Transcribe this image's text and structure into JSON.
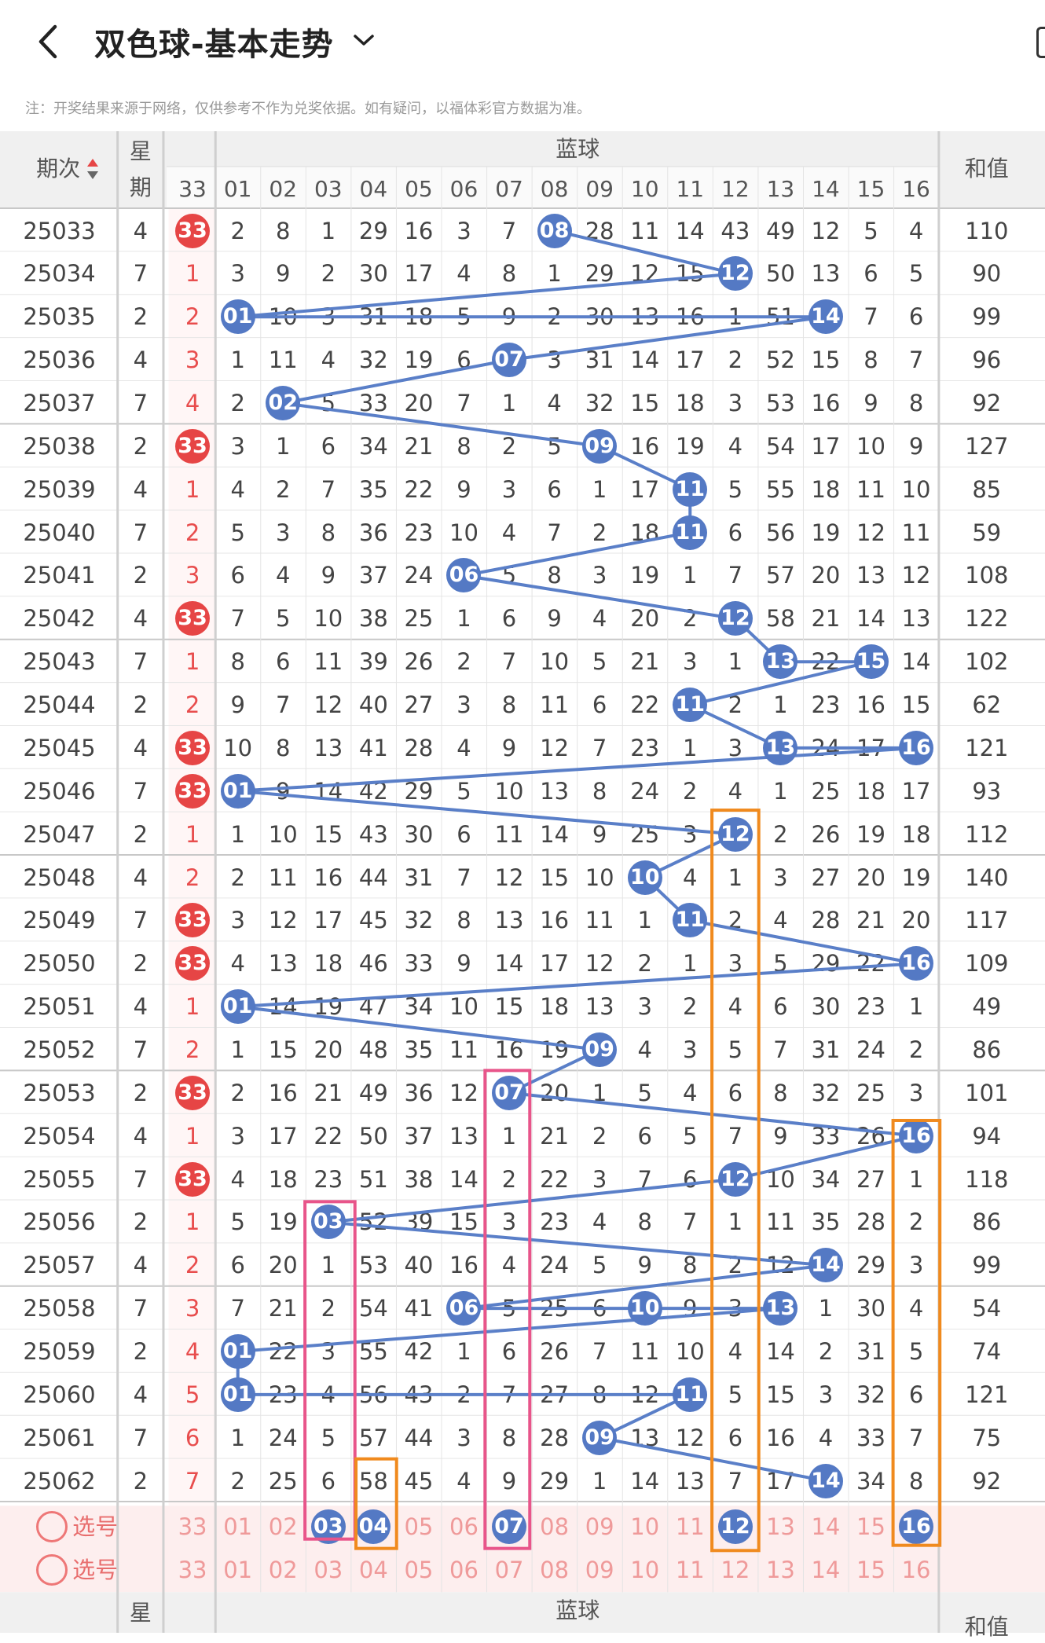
{
  "header": {
    "title": "双色球-基本走势"
  },
  "note": "注：开奖结果来源于网络，仅供参考不作为兑奖依据。如有疑问，以福体彩官方数据为准。",
  "table": {
    "col_issue": "期次",
    "col_week": "星期",
    "col_blue": "蓝球",
    "col_sum": "和值",
    "red_col": "33",
    "blue_headers": [
      "01",
      "02",
      "03",
      "04",
      "05",
      "06",
      "07",
      "08",
      "09",
      "10",
      "11",
      "12",
      "13",
      "14",
      "15",
      "16"
    ],
    "rows": [
      {
        "issue": "25033",
        "week": "4",
        "red": "33",
        "blue": [
          "2",
          "8",
          "1",
          "29",
          "16",
          "3",
          "7",
          "08",
          "28",
          "11",
          "14",
          "43",
          "49",
          "12",
          "5",
          "4"
        ],
        "sum": "110"
      },
      {
        "issue": "25034",
        "week": "7",
        "red": "1",
        "blue": [
          "3",
          "9",
          "2",
          "30",
          "17",
          "4",
          "8",
          "1",
          "29",
          "12",
          "15",
          "12",
          "50",
          "13",
          "6",
          "5"
        ],
        "sum": "90"
      },
      {
        "issue": "25035",
        "week": "2",
        "red": "2",
        "blue": [
          "01",
          "10",
          "3",
          "31",
          "18",
          "5",
          "9",
          "2",
          "30",
          "13",
          "16",
          "1",
          "51",
          "14",
          "7",
          "6"
        ],
        "sum": "99"
      },
      {
        "issue": "25036",
        "week": "4",
        "red": "3",
        "blue": [
          "1",
          "11",
          "4",
          "32",
          "19",
          "6",
          "07",
          "3",
          "31",
          "14",
          "17",
          "2",
          "52",
          "15",
          "8",
          "7"
        ],
        "sum": "96"
      },
      {
        "issue": "25037",
        "week": "7",
        "red": "4",
        "blue": [
          "2",
          "02",
          "5",
          "33",
          "20",
          "7",
          "1",
          "4",
          "32",
          "15",
          "18",
          "3",
          "53",
          "16",
          "9",
          "8"
        ],
        "sum": "92"
      },
      {
        "issue": "25038",
        "week": "2",
        "red": "33",
        "blue": [
          "3",
          "1",
          "6",
          "34",
          "21",
          "8",
          "2",
          "5",
          "09",
          "16",
          "19",
          "4",
          "54",
          "17",
          "10",
          "9"
        ],
        "sum": "127"
      },
      {
        "issue": "25039",
        "week": "4",
        "red": "1",
        "blue": [
          "4",
          "2",
          "7",
          "35",
          "22",
          "9",
          "3",
          "6",
          "1",
          "17",
          "11",
          "5",
          "55",
          "18",
          "11",
          "10"
        ],
        "sum": "85"
      },
      {
        "issue": "25040",
        "week": "7",
        "red": "2",
        "blue": [
          "5",
          "3",
          "8",
          "36",
          "23",
          "10",
          "4",
          "7",
          "2",
          "18",
          "11",
          "6",
          "56",
          "19",
          "12",
          "11"
        ],
        "sum": "59"
      },
      {
        "issue": "25041",
        "week": "2",
        "red": "3",
        "blue": [
          "6",
          "4",
          "9",
          "37",
          "24",
          "06",
          "5",
          "8",
          "3",
          "19",
          "1",
          "7",
          "57",
          "20",
          "13",
          "12"
        ],
        "sum": "108"
      },
      {
        "issue": "25042",
        "week": "4",
        "red": "33",
        "blue": [
          "7",
          "5",
          "10",
          "38",
          "25",
          "1",
          "6",
          "9",
          "4",
          "20",
          "2",
          "12",
          "58",
          "21",
          "14",
          "13"
        ],
        "sum": "122"
      },
      {
        "issue": "25043",
        "week": "7",
        "red": "1",
        "blue": [
          "8",
          "6",
          "11",
          "39",
          "26",
          "2",
          "7",
          "10",
          "5",
          "21",
          "3",
          "1",
          "13",
          "22",
          "15",
          "14"
        ],
        "sum": "102"
      },
      {
        "issue": "25044",
        "week": "2",
        "red": "2",
        "blue": [
          "9",
          "7",
          "12",
          "40",
          "27",
          "3",
          "8",
          "11",
          "6",
          "22",
          "11",
          "2",
          "1",
          "23",
          "16",
          "15"
        ],
        "sum": "62"
      },
      {
        "issue": "25045",
        "week": "4",
        "red": "33",
        "blue": [
          "10",
          "8",
          "13",
          "41",
          "28",
          "4",
          "9",
          "12",
          "7",
          "23",
          "1",
          "3",
          "13",
          "24",
          "17",
          "16"
        ],
        "sum": "121"
      },
      {
        "issue": "25046",
        "week": "7",
        "red": "33",
        "blue": [
          "01",
          "9",
          "14",
          "42",
          "29",
          "5",
          "10",
          "13",
          "8",
          "24",
          "2",
          "4",
          "1",
          "25",
          "18",
          "17"
        ],
        "sum": "93"
      },
      {
        "issue": "25047",
        "week": "2",
        "red": "1",
        "blue": [
          "1",
          "10",
          "15",
          "43",
          "30",
          "6",
          "11",
          "14",
          "9",
          "25",
          "3",
          "12",
          "2",
          "26",
          "19",
          "18"
        ],
        "sum": "112"
      },
      {
        "issue": "25048",
        "week": "4",
        "red": "2",
        "blue": [
          "2",
          "11",
          "16",
          "44",
          "31",
          "7",
          "12",
          "15",
          "10",
          "10",
          "4",
          "1",
          "3",
          "27",
          "20",
          "19"
        ],
        "sum": "140"
      },
      {
        "issue": "25049",
        "week": "7",
        "red": "33",
        "blue": [
          "3",
          "12",
          "17",
          "45",
          "32",
          "8",
          "13",
          "16",
          "11",
          "1",
          "11",
          "2",
          "4",
          "28",
          "21",
          "20"
        ],
        "sum": "117"
      },
      {
        "issue": "25050",
        "week": "2",
        "red": "33",
        "blue": [
          "4",
          "13",
          "18",
          "46",
          "33",
          "9",
          "14",
          "17",
          "12",
          "2",
          "1",
          "3",
          "5",
          "29",
          "22",
          "16"
        ],
        "sum": "109"
      },
      {
        "issue": "25051",
        "week": "4",
        "red": "1",
        "blue": [
          "01",
          "14",
          "19",
          "47",
          "34",
          "10",
          "15",
          "18",
          "13",
          "3",
          "2",
          "4",
          "6",
          "30",
          "23",
          "1"
        ],
        "sum": "49"
      },
      {
        "issue": "25052",
        "week": "7",
        "red": "2",
        "blue": [
          "1",
          "15",
          "20",
          "48",
          "35",
          "11",
          "16",
          "19",
          "09",
          "4",
          "3",
          "5",
          "7",
          "31",
          "24",
          "2"
        ],
        "sum": "86"
      },
      {
        "issue": "25053",
        "week": "2",
        "red": "33",
        "blue": [
          "2",
          "16",
          "21",
          "49",
          "36",
          "12",
          "07",
          "20",
          "1",
          "5",
          "4",
          "6",
          "8",
          "32",
          "25",
          "3"
        ],
        "sum": "101"
      },
      {
        "issue": "25054",
        "week": "4",
        "red": "1",
        "blue": [
          "3",
          "17",
          "22",
          "50",
          "37",
          "13",
          "1",
          "21",
          "2",
          "6",
          "5",
          "7",
          "9",
          "33",
          "26",
          "16"
        ],
        "sum": "94"
      },
      {
        "issue": "25055",
        "week": "7",
        "red": "33",
        "blue": [
          "4",
          "18",
          "23",
          "51",
          "38",
          "14",
          "2",
          "22",
          "3",
          "7",
          "6",
          "12",
          "10",
          "34",
          "27",
          "1"
        ],
        "sum": "118"
      },
      {
        "issue": "25056",
        "week": "2",
        "red": "1",
        "blue": [
          "5",
          "19",
          "03",
          "52",
          "39",
          "15",
          "3",
          "23",
          "4",
          "8",
          "7",
          "1",
          "11",
          "35",
          "28",
          "2"
        ],
        "sum": "86"
      },
      {
        "issue": "25057",
        "week": "4",
        "red": "2",
        "blue": [
          "6",
          "20",
          "1",
          "53",
          "40",
          "16",
          "4",
          "24",
          "5",
          "9",
          "8",
          "2",
          "12",
          "14",
          "29",
          "3"
        ],
        "sum": "99"
      },
      {
        "issue": "25058",
        "week": "7",
        "red": "3",
        "blue": [
          "7",
          "21",
          "2",
          "54",
          "41",
          "06",
          "5",
          "25",
          "6",
          "10",
          "9",
          "3",
          "13",
          "1",
          "30",
          "4"
        ],
        "sum": "54"
      },
      {
        "issue": "25059",
        "week": "2",
        "red": "4",
        "blue": [
          "01",
          "22",
          "3",
          "55",
          "42",
          "1",
          "6",
          "26",
          "7",
          "11",
          "10",
          "4",
          "14",
          "2",
          "31",
          "5"
        ],
        "sum": "74"
      },
      {
        "issue": "25060",
        "week": "4",
        "red": "5",
        "blue": [
          "01",
          "23",
          "4",
          "56",
          "43",
          "2",
          "7",
          "27",
          "8",
          "12",
          "11",
          "5",
          "15",
          "3",
          "32",
          "6"
        ],
        "sum": "121"
      },
      {
        "issue": "25061",
        "week": "7",
        "red": "6",
        "blue": [
          "1",
          "24",
          "5",
          "57",
          "44",
          "3",
          "8",
          "28",
          "09",
          "13",
          "12",
          "6",
          "16",
          "4",
          "33",
          "7"
        ],
        "sum": "75"
      },
      {
        "issue": "25062",
        "week": "2",
        "red": "7",
        "blue": [
          "2",
          "25",
          "6",
          "58",
          "45",
          "4",
          "9",
          "29",
          "1",
          "14",
          "13",
          "7",
          "17",
          "14",
          "34",
          "8"
        ],
        "sum": "92"
      }
    ],
    "pick_label": "选号",
    "pick_rows": [
      {
        "red": "33",
        "blue": [
          "01",
          "02",
          "03",
          "04",
          "05",
          "06",
          "07",
          "08",
          "09",
          "10",
          "11",
          "12",
          "13",
          "14",
          "15",
          "16"
        ]
      },
      {
        "red": "33",
        "blue": [
          "01",
          "02",
          "03",
          "04",
          "05",
          "06",
          "07",
          "08",
          "09",
          "10",
          "11",
          "12",
          "13",
          "14",
          "15",
          "16"
        ]
      }
    ]
  },
  "colors": {
    "blue_ball": "#5479c4",
    "red_ball": "#e64545",
    "line": "#5a7fc8",
    "pink_box": "#e8558a",
    "orange_box": "#f08a1e"
  }
}
